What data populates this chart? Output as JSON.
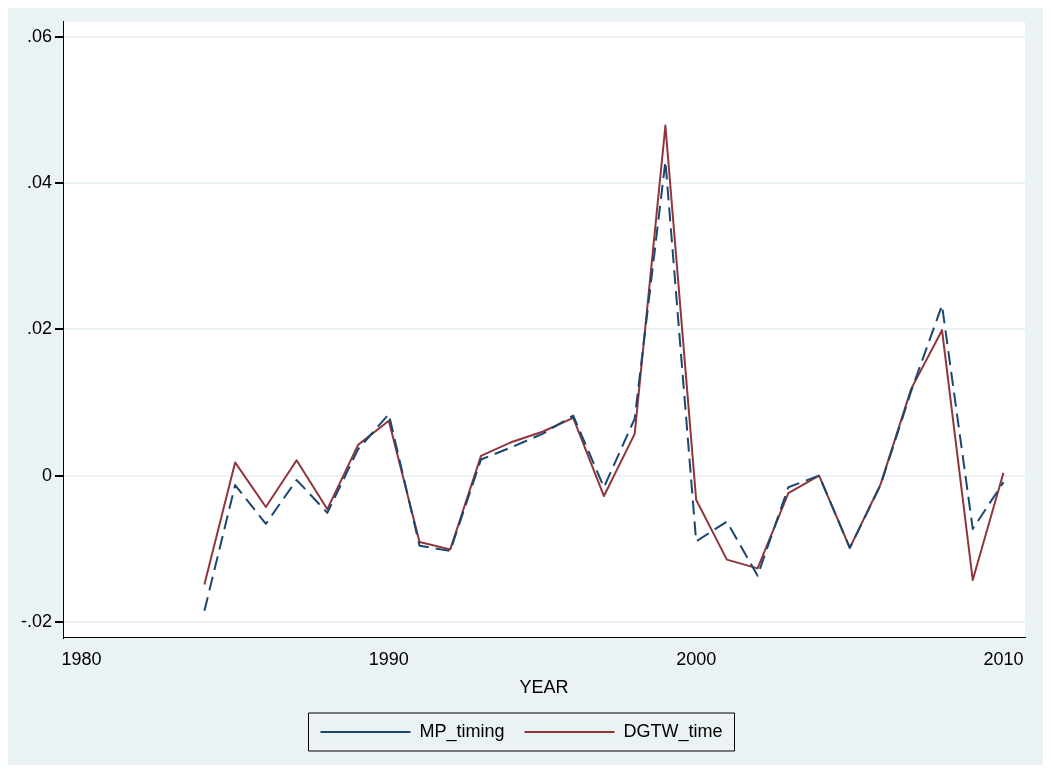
{
  "chart_data": {
    "type": "line",
    "xlabel": "YEAR",
    "x": [
      1984,
      1985,
      1986,
      1987,
      1988,
      1989,
      1990,
      1991,
      1992,
      1993,
      1994,
      1995,
      1996,
      1997,
      1998,
      1999,
      2000,
      2001,
      2002,
      2003,
      2004,
      2005,
      2006,
      2007,
      2008,
      2009,
      2010
    ],
    "series": [
      {
        "name": "MP_timing",
        "color": "#1a476f",
        "line_style": "dashed",
        "values": [
          -0.0185,
          -0.0013,
          -0.0066,
          -0.0006,
          -0.0051,
          0.0036,
          0.0084,
          -0.0096,
          -0.0103,
          0.0022,
          0.0039,
          0.0057,
          0.0082,
          -0.0016,
          0.0078,
          0.043,
          -0.009,
          -0.0063,
          -0.0137,
          -0.0016,
          0,
          -0.0099,
          -0.0013,
          0.0116,
          0.0233,
          -0.0073,
          -0.0009
        ]
      },
      {
        "name": "DGTW_time",
        "color": "#90353b",
        "line_style": "solid",
        "values": [
          -0.0149,
          0.0018,
          -0.0043,
          0.0021,
          -0.0046,
          0.0042,
          0.0075,
          -0.0091,
          -0.0101,
          0.0027,
          0.0046,
          0.006,
          0.0079,
          -0.0028,
          0.0057,
          0.0479,
          -0.0033,
          -0.0115,
          -0.0127,
          -0.0024,
          0,
          -0.0099,
          -0.0012,
          0.0119,
          0.0199,
          -0.0143,
          0.0004
        ]
      }
    ],
    "xlim": [
      1979.4,
      2010.7
    ],
    "xticks": [
      1980,
      1990,
      2000,
      2010
    ],
    "ylim": [
      -0.0222,
      0.0621
    ],
    "yticks": [
      {
        "value": -0.02,
        "label": "-.02"
      },
      {
        "value": 0,
        "label": "0"
      },
      {
        "value": 0.02,
        "label": ".02"
      },
      {
        "value": 0.04,
        "label": ".04"
      },
      {
        "value": 0.06,
        "label": ".06"
      }
    ],
    "grid": "y",
    "legend": "bottom",
    "marker": "none"
  }
}
